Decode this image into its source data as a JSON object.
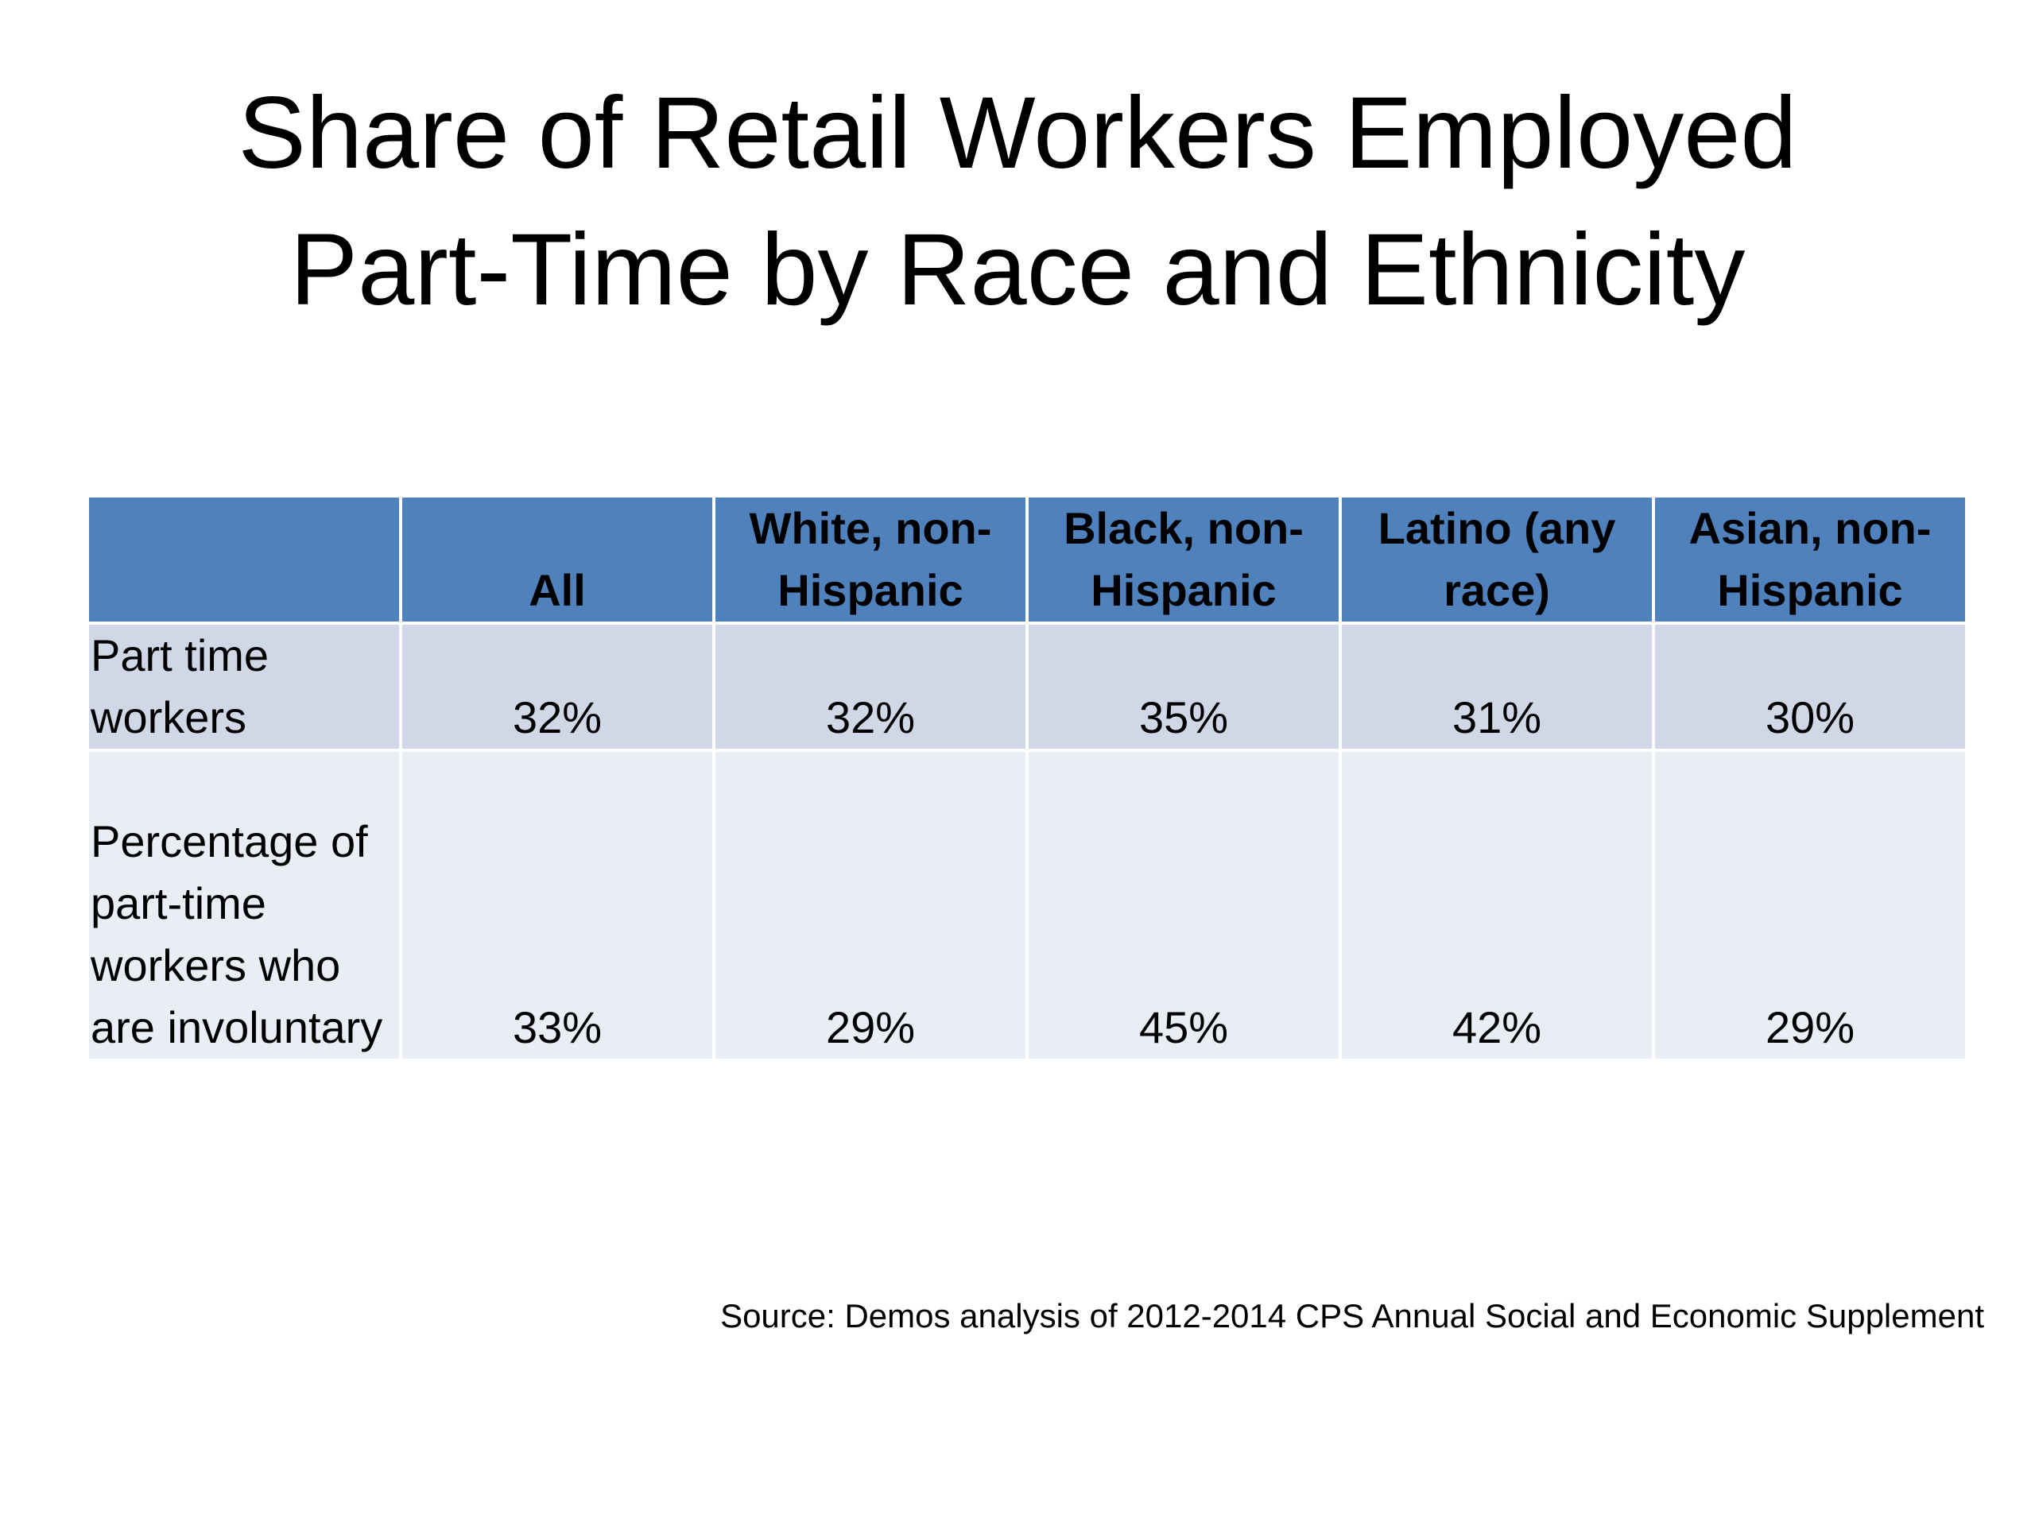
{
  "title": {
    "line1": "Share of Retail Workers Employed",
    "line2": "Part-Time by Race and Ethnicity"
  },
  "table": {
    "headers": [
      "",
      "All",
      "White, non-Hispanic",
      "Black, non-Hispanic",
      "Latino (any race)",
      "Asian, non-Hispanic"
    ],
    "rows": [
      {
        "label": "Part time workers",
        "values": [
          "32%",
          "32%",
          "35%",
          "31%",
          "30%"
        ]
      },
      {
        "label": "Percentage of part-time workers who are involuntary",
        "values": [
          "33%",
          "29%",
          "45%",
          "42%",
          "29%"
        ]
      }
    ]
  },
  "source": "Source: Demos analysis of 2012-2014 CPS Annual Social and Economic Supplement",
  "colors": {
    "header_fill": "#4f81bd",
    "row_band_1": "#d0d8e8",
    "row_band_2": "#e9edf4"
  }
}
